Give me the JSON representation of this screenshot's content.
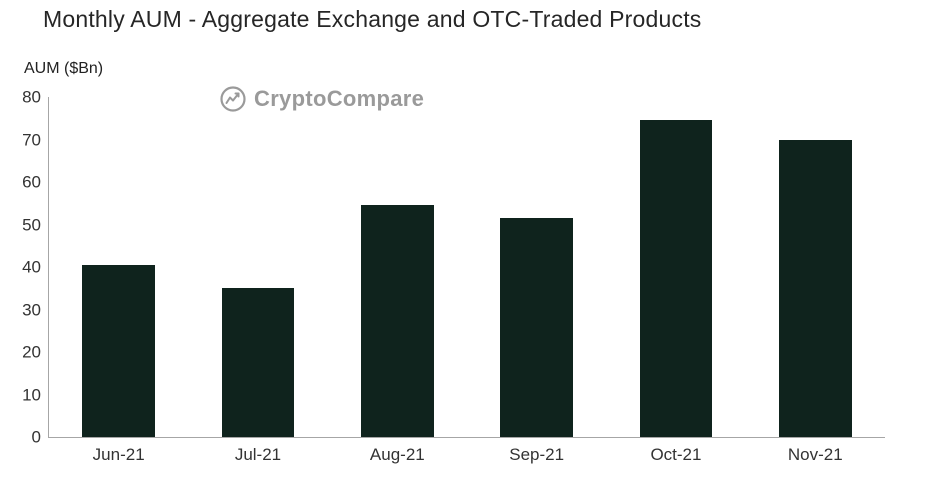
{
  "watermark": "CryptoCompare",
  "chart_data": {
    "type": "bar",
    "title": "Monthly AUM - Aggregate Exchange and OTC-Traded Products",
    "xlabel": "",
    "ylabel": "AUM ($Bn)",
    "categories": [
      "Jun-21",
      "Jul-21",
      "Aug-21",
      "Sep-21",
      "Oct-21",
      "Nov-21"
    ],
    "values": [
      40.5,
      35,
      54.5,
      51.5,
      74.5,
      70
    ],
    "ylim": [
      0,
      80
    ],
    "yticks": [
      0,
      10,
      20,
      30,
      40,
      50,
      60,
      70,
      80
    ],
    "grid": false,
    "legend": null,
    "bar_color": "#0f231d",
    "axis_color": "#a6a6a6",
    "watermark_color": "#9a9a9a"
  }
}
